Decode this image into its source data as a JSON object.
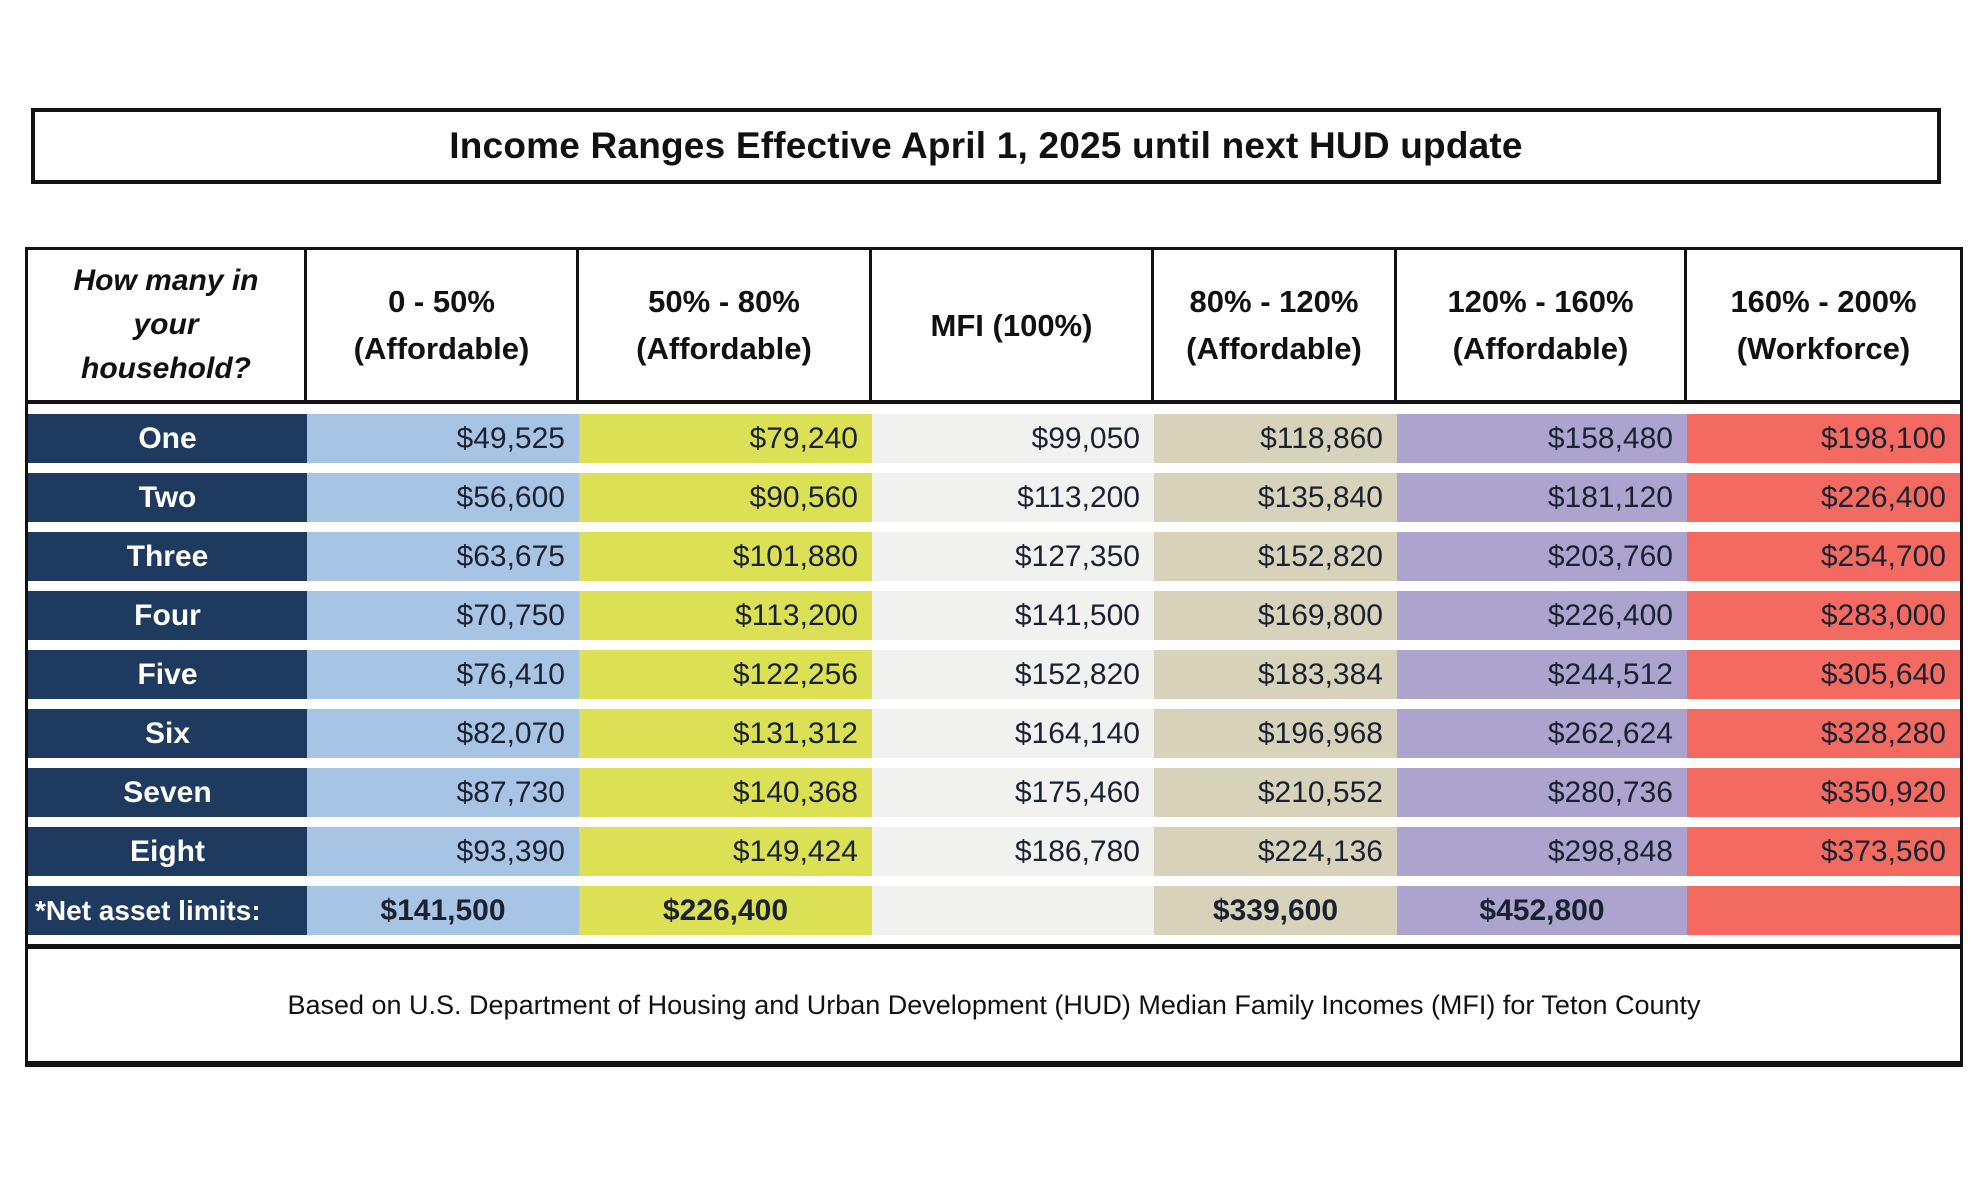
{
  "title": "Income Ranges Effective April 1, 2025 until next HUD update",
  "table": {
    "household_header": "How many in\nyour\nhousehold?",
    "columns": [
      {
        "range": "0 - 50%",
        "tier": "(Affordable)"
      },
      {
        "range": "50% - 80%",
        "tier": "(Affordable)"
      },
      {
        "range": "MFI (100%)",
        "tier": ""
      },
      {
        "range": "80% - 120%",
        "tier": "(Affordable)"
      },
      {
        "range": "120% - 160%",
        "tier": "(Affordable)"
      },
      {
        "range": "160% - 200%",
        "tier": "(Workforce)"
      }
    ],
    "rows": [
      {
        "label": "One",
        "values": [
          "$49,525",
          "$79,240",
          "$99,050",
          "$118,860",
          "$158,480",
          "$198,100"
        ]
      },
      {
        "label": "Two",
        "values": [
          "$56,600",
          "$90,560",
          "$113,200",
          "$135,840",
          "$181,120",
          "$226,400"
        ]
      },
      {
        "label": "Three",
        "values": [
          "$63,675",
          "$101,880",
          "$127,350",
          "$152,820",
          "$203,760",
          "$254,700"
        ]
      },
      {
        "label": "Four",
        "values": [
          "$70,750",
          "$113,200",
          "$141,500",
          "$169,800",
          "$226,400",
          "$283,000"
        ]
      },
      {
        "label": "Five",
        "values": [
          "$76,410",
          "$122,256",
          "$152,820",
          "$183,384",
          "$244,512",
          "$305,640"
        ]
      },
      {
        "label": "Six",
        "values": [
          "$82,070",
          "$131,312",
          "$164,140",
          "$196,968",
          "$262,624",
          "$328,280"
        ]
      },
      {
        "label": "Seven",
        "values": [
          "$87,730",
          "$140,368",
          "$175,460",
          "$210,552",
          "$280,736",
          "$350,920"
        ]
      },
      {
        "label": "Eight",
        "values": [
          "$93,390",
          "$149,424",
          "$186,780",
          "$224,136",
          "$298,848",
          "$373,560"
        ]
      }
    ],
    "net_asset_row": {
      "label": "*Net asset limits:",
      "values": [
        "$141,500",
        "$226,400",
        "",
        "$339,600",
        "$452,800",
        ""
      ]
    }
  },
  "footer": "Based on U.S. Department of Housing and Urban Development (HUD) Median Family Incomes (MFI) for Teton County",
  "colors": {
    "navy": "#1E3A5E",
    "blue": "#A8C4E4",
    "chartreuse": "#DBE055",
    "gray": "#F1F1EF",
    "tan": "#D7D2BA",
    "purple": "#ACA4CF",
    "salmon": "#F36A61",
    "value_text": "#1A2130"
  }
}
